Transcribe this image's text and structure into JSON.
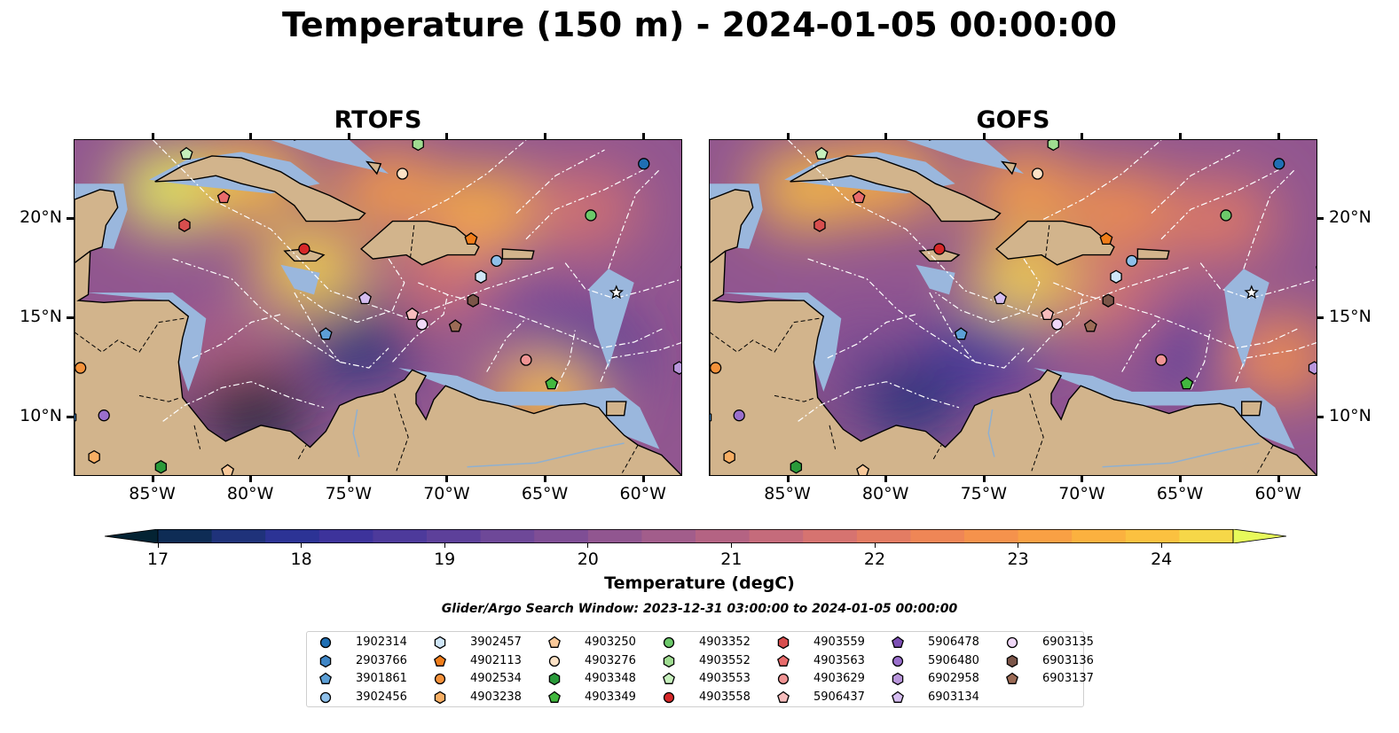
{
  "title": "Temperature (150 m) - 2024-01-05 00:00:00",
  "panels": [
    {
      "title": "RTOFS"
    },
    {
      "title": "GOFS"
    }
  ],
  "axes": {
    "x_ticks": [
      "85°W",
      "80°W",
      "75°W",
      "70°W",
      "65°W",
      "60°W"
    ],
    "y_ticks": [
      "20°N",
      "15°N",
      "10°N"
    ],
    "lon_range": [
      -89,
      -58
    ],
    "lat_range": [
      7,
      24
    ]
  },
  "colorbar": {
    "label": "Temperature (degC)",
    "ticks": [
      "17",
      "18",
      "19",
      "20",
      "21",
      "22",
      "23",
      "24"
    ],
    "range": [
      17,
      24.5
    ],
    "colors": [
      "#042333",
      "#0e2c55",
      "#1f327a",
      "#2c3395",
      "#3d339b",
      "#4d3a9b",
      "#5d409a",
      "#6e4898",
      "#7f4e95",
      "#915690",
      "#a25d8b",
      "#b46383",
      "#c56b7b",
      "#d67370",
      "#e37c63",
      "#ef8656",
      "#f5924c",
      "#f9a044",
      "#fbb13f",
      "#fbc140",
      "#f6d748",
      "#e8fa5b"
    ]
  },
  "search_window": "Glider/Argo Search Window: 2023-12-31 03:00:00 to 2024-01-05 00:00:00",
  "chart_data": [
    {
      "type": "heatmap",
      "title": "RTOFS",
      "variable": "Temperature (150 m)",
      "units": "degC",
      "xlim": [
        -89,
        -58
      ],
      "ylim": [
        7,
        24
      ],
      "zlim": [
        17,
        24.5
      ],
      "regions": [
        {
          "lon": -84,
          "lat": 21.5,
          "value": 24.2
        },
        {
          "lon": -80,
          "lat": 22.0,
          "value": 23.5
        },
        {
          "lon": -73,
          "lat": 21.5,
          "value": 23.0
        },
        {
          "lon": -68,
          "lat": 20.5,
          "value": 23.3
        },
        {
          "lon": -63,
          "lat": 20.5,
          "value": 21.5
        },
        {
          "lon": -77,
          "lat": 17.5,
          "value": 24.0
        },
        {
          "lon": -70,
          "lat": 17.0,
          "value": 21.5
        },
        {
          "lon": -66,
          "lat": 15.5,
          "value": 20.0
        },
        {
          "lon": -81,
          "lat": 13.0,
          "value": 20.8
        },
        {
          "lon": -74.5,
          "lat": 13.8,
          "value": 18.0
        },
        {
          "lon": -63,
          "lat": 13.0,
          "value": 18.5
        },
        {
          "lon": -80,
          "lat": 10.5,
          "value": 17.3
        },
        {
          "lon": -65,
          "lat": 11.0,
          "value": 23.5
        },
        {
          "lon": -87,
          "lat": 9.0,
          "value": 17.0
        }
      ]
    },
    {
      "type": "heatmap",
      "title": "GOFS",
      "variable": "Temperature (150 m)",
      "units": "degC",
      "xlim": [
        -89,
        -58
      ],
      "ylim": [
        7,
        24
      ],
      "zlim": [
        17,
        24.5
      ],
      "regions": [
        {
          "lon": -84,
          "lat": 21.5,
          "value": 23.6
        },
        {
          "lon": -80,
          "lat": 22.0,
          "value": 23.2
        },
        {
          "lon": -73,
          "lat": 21.5,
          "value": 22.8
        },
        {
          "lon": -68,
          "lat": 20.5,
          "value": 22.5
        },
        {
          "lon": -63,
          "lat": 20.0,
          "value": 22.0
        },
        {
          "lon": -73,
          "lat": 17.0,
          "value": 24.0
        },
        {
          "lon": -68,
          "lat": 16.0,
          "value": 22.0
        },
        {
          "lon": -66,
          "lat": 15.0,
          "value": 21.0
        },
        {
          "lon": -81,
          "lat": 13.0,
          "value": 20.0
        },
        {
          "lon": -75,
          "lat": 13.5,
          "value": 18.5
        },
        {
          "lon": -64,
          "lat": 13.5,
          "value": 19.0
        },
        {
          "lon": -79,
          "lat": 11.0,
          "value": 18.0
        },
        {
          "lon": -60,
          "lat": 13.0,
          "value": 22.5
        },
        {
          "lon": -87,
          "lat": 9.0,
          "value": 17.0
        }
      ]
    }
  ],
  "markers": [
    {
      "id": "1902314",
      "shape": "circle",
      "color": "#1f6fb4",
      "lon": -60.0,
      "lat": 22.8
    },
    {
      "id": "2903766",
      "shape": "hexagon",
      "color": "#3f86c6",
      "lon": -89.2,
      "lat": 10.0
    },
    {
      "id": "3901861",
      "shape": "pentagon",
      "color": "#5c9fd6",
      "lon": -76.2,
      "lat": 14.2
    },
    {
      "id": "3902456",
      "shape": "circle",
      "color": "#8ec0ea",
      "lon": -67.5,
      "lat": 17.9
    },
    {
      "id": "3902457",
      "shape": "hexagon",
      "color": "#cfe6f8",
      "lon": -68.3,
      "lat": 17.1
    },
    {
      "id": "4902113",
      "shape": "pentagon",
      "color": "#f07d1a",
      "lon": -68.8,
      "lat": 19.0
    },
    {
      "id": "4902534",
      "shape": "circle",
      "color": "#f5923a",
      "lon": -88.7,
      "lat": 12.5
    },
    {
      "id": "4903238",
      "shape": "hexagon",
      "color": "#f7ae63",
      "lon": -88.0,
      "lat": 8.0
    },
    {
      "id": "4903250",
      "shape": "pentagon",
      "color": "#f9c99a",
      "lon": -81.2,
      "lat": 7.3
    },
    {
      "id": "4903276",
      "shape": "circle",
      "color": "#fde2c6",
      "lon": -72.3,
      "lat": 22.3
    },
    {
      "id": "4903348",
      "shape": "hexagon",
      "color": "#2a9a3a",
      "lon": -84.6,
      "lat": 7.5
    },
    {
      "id": "4903349",
      "shape": "pentagon",
      "color": "#42b83f",
      "lon": -64.7,
      "lat": 11.7
    },
    {
      "id": "4903352",
      "shape": "circle",
      "color": "#6cc96a",
      "lon": -62.7,
      "lat": 20.2
    },
    {
      "id": "4903552",
      "shape": "hexagon",
      "color": "#9fdc91",
      "lon": -71.5,
      "lat": 23.8
    },
    {
      "id": "4903553",
      "shape": "pentagon",
      "color": "#c6f0bc",
      "lon": -83.3,
      "lat": 23.3
    },
    {
      "id": "4903558",
      "shape": "circle",
      "color": "#d62728",
      "lon": -77.3,
      "lat": 18.5
    },
    {
      "id": "4903559",
      "shape": "hexagon",
      "color": "#d84e4e",
      "lon": -83.4,
      "lat": 19.7
    },
    {
      "id": "4903563",
      "shape": "pentagon",
      "color": "#e86b6b",
      "lon": -81.4,
      "lat": 21.1
    },
    {
      "id": "4903629",
      "shape": "circle",
      "color": "#f09494",
      "lon": -66.0,
      "lat": 12.9
    },
    {
      "id": "5906437",
      "shape": "pentagon",
      "color": "#f7bdbd",
      "lon": -71.8,
      "lat": 15.2
    },
    {
      "id": "5906478",
      "shape": "pentagon",
      "color": "#7d4fb5",
      "lon": -57.8,
      "lat": 17.5
    },
    {
      "id": "5906480",
      "shape": "circle",
      "color": "#9a6fcc",
      "lon": -87.5,
      "lat": 10.1
    },
    {
      "id": "6902958",
      "shape": "hexagon",
      "color": "#b996dc",
      "lon": -58.2,
      "lat": 12.5
    },
    {
      "id": "6903134",
      "shape": "pentagon",
      "color": "#d5bdf0",
      "lon": -74.2,
      "lat": 16.0
    },
    {
      "id": "6903135",
      "shape": "circle",
      "color": "#f0d8f8",
      "lon": -71.3,
      "lat": 14.7
    },
    {
      "id": "6903136",
      "shape": "hexagon",
      "color": "#7b5548",
      "lon": -68.7,
      "lat": 15.9
    },
    {
      "id": "6903137",
      "shape": "pentagon",
      "color": "#9c6b56",
      "lon": -69.6,
      "lat": 14.6
    },
    {
      "id": "star",
      "shape": "star",
      "color": "#ffffff",
      "lon": -61.4,
      "lat": 16.3,
      "legend": false
    }
  ],
  "colors": {
    "land": "#d2b48c",
    "shelf": "#9ab7dd",
    "deep_water_low": "#042333"
  }
}
